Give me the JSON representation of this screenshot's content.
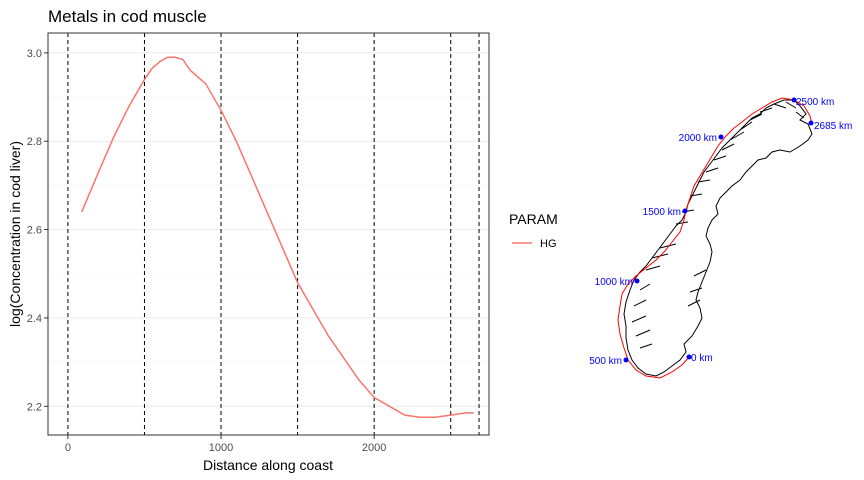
{
  "chart_data": {
    "type": "line",
    "title": "Metals in cod muscle",
    "xlabel": "Distance along coast",
    "ylabel": "log(Concentration in cod liver)",
    "xlim": [
      -130,
      2750
    ],
    "ylim": [
      2.135,
      3.045
    ],
    "x_ticks": [
      0,
      1000,
      2000
    ],
    "y_ticks": [
      2.2,
      2.4,
      2.6,
      2.8,
      3.0
    ],
    "y_tick_labels": [
      "2.2",
      "2.4",
      "2.6",
      "2.8",
      "3.0"
    ],
    "grid": true,
    "vlines": [
      0,
      500,
      1000,
      1500,
      2000,
      2500,
      2685
    ],
    "series": [
      {
        "name": "HG",
        "color": "#F8766D",
        "x": [
          90,
          200,
          300,
          400,
          500,
          550,
          600,
          650,
          700,
          750,
          800,
          900,
          1000,
          1100,
          1200,
          1300,
          1400,
          1500,
          1600,
          1700,
          1800,
          1900,
          2000,
          2100,
          2200,
          2300,
          2400,
          2500,
          2600,
          2650
        ],
        "y": [
          2.64,
          2.73,
          2.81,
          2.88,
          2.94,
          2.965,
          2.98,
          2.99,
          2.99,
          2.985,
          2.96,
          2.93,
          2.87,
          2.8,
          2.72,
          2.64,
          2.56,
          2.48,
          2.42,
          2.36,
          2.31,
          2.26,
          2.22,
          2.2,
          2.18,
          2.175,
          2.175,
          2.18,
          2.185,
          2.185
        ]
      }
    ],
    "legend": {
      "title": "PARAM",
      "position": "right",
      "entries": [
        "HG"
      ]
    }
  },
  "map": {
    "coast_color": "#000000",
    "route_color": "#FF0000",
    "marker_color": "#0000FF",
    "labels": [
      "0 km",
      "500 km",
      "1000 km",
      "1500 km",
      "2000 km",
      "2500 km",
      "2685 km"
    ]
  }
}
